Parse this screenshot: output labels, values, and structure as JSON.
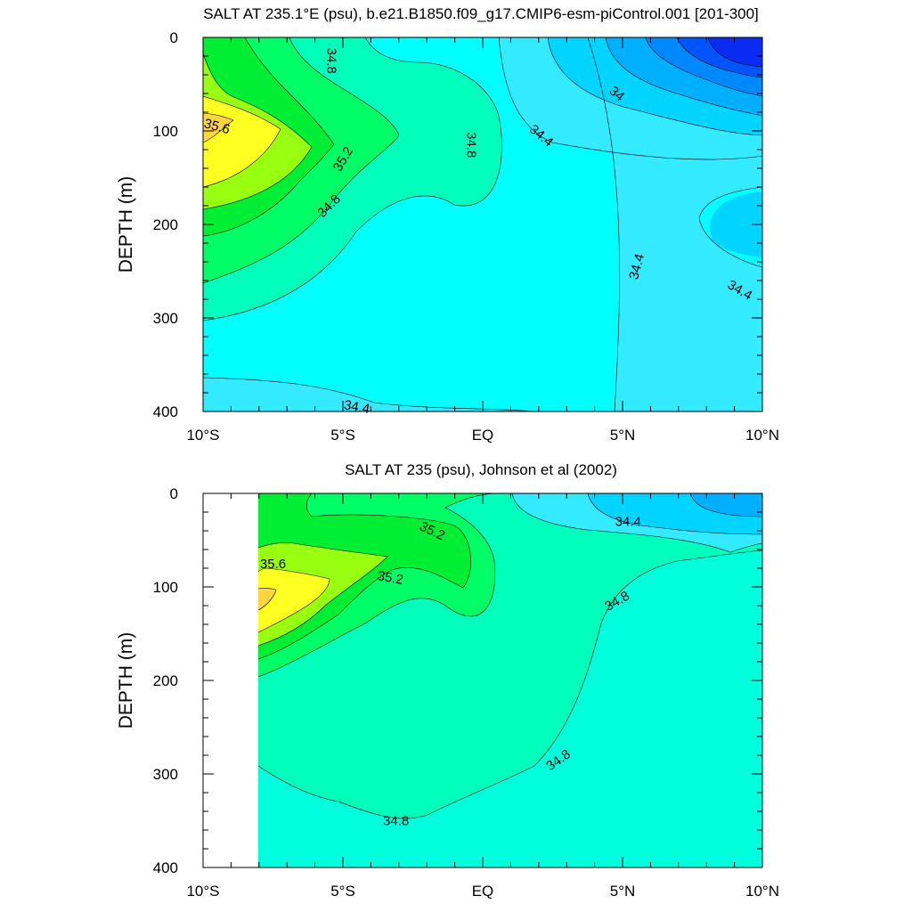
{
  "chart_data": [
    {
      "type": "contour",
      "title": "SALT AT 235.1°E (psu), b.e21.B1850.f09_g17.CMIP6-esm-piControl.001 [201-300]",
      "xlabel": "",
      "ylabel": "DEPTH (m)",
      "xlim": [
        -10,
        10
      ],
      "ylim": [
        400,
        0
      ],
      "y_inverted": true,
      "x_ticks": [
        {
          "value": -10,
          "label": "10°S"
        },
        {
          "value": -5,
          "label": "5°S"
        },
        {
          "value": 0,
          "label": "EQ"
        },
        {
          "value": 5,
          "label": "5°N"
        },
        {
          "value": 10,
          "label": "10°N"
        }
      ],
      "y_ticks": [
        {
          "value": 0,
          "label": "0"
        },
        {
          "value": 100,
          "label": "100"
        },
        {
          "value": 200,
          "label": "200"
        },
        {
          "value": 300,
          "label": "300"
        },
        {
          "value": 400,
          "label": "400"
        }
      ],
      "contour_levels": [
        33.6,
        33.8,
        34.0,
        34.2,
        34.4,
        34.6,
        34.8,
        35.0,
        35.2,
        35.4,
        35.6,
        35.8
      ],
      "contour_labels": [
        {
          "text": "34.8",
          "x": -5.4,
          "y": 25,
          "angle": 90
        },
        {
          "text": "34.8",
          "x": -0.4,
          "y": 115,
          "angle": 90
        },
        {
          "text": "34",
          "x": 4.8,
          "y": 60,
          "angle": 40
        },
        {
          "text": "34.4",
          "x": 2.1,
          "y": 105,
          "angle": 40
        },
        {
          "text": "35.6",
          "x": -9.5,
          "y": 95,
          "angle": 15
        },
        {
          "text": "35.2",
          "x": -5.0,
          "y": 130,
          "angle": -60
        },
        {
          "text": "34.8",
          "x": -5.5,
          "y": 180,
          "angle": -45
        },
        {
          "text": "34.4",
          "x": 5.5,
          "y": 245,
          "angle": -75
        },
        {
          "text": "34.4",
          "x": 9.2,
          "y": 270,
          "angle": 30
        },
        {
          "text": "34.4",
          "x": -4.5,
          "y": 395,
          "angle": 10
        }
      ]
    },
    {
      "type": "contour",
      "title": "SALT AT 235 (psu), Johnson et al (2002)",
      "xlabel": "",
      "ylabel": "DEPTH (m)",
      "xlim": [
        -10,
        10
      ],
      "ylim": [
        400,
        0
      ],
      "y_inverted": true,
      "x_ticks": [
        {
          "value": -10,
          "label": "10°S"
        },
        {
          "value": -5,
          "label": "5°S"
        },
        {
          "value": 0,
          "label": "EQ"
        },
        {
          "value": 5,
          "label": "5°N"
        },
        {
          "value": 10,
          "label": "10°N"
        }
      ],
      "y_ticks": [
        {
          "value": 0,
          "label": "0"
        },
        {
          "value": 100,
          "label": "100"
        },
        {
          "value": 200,
          "label": "200"
        },
        {
          "value": 300,
          "label": "300"
        },
        {
          "value": 400,
          "label": "400"
        }
      ],
      "data_x_range": [
        -8,
        10
      ],
      "contour_levels": [
        34.0,
        34.2,
        34.4,
        34.6,
        34.8,
        35.0,
        35.2,
        35.4,
        35.6,
        35.8
      ],
      "contour_labels": [
        {
          "text": "35.2",
          "x": -1.8,
          "y": 40,
          "angle": 25
        },
        {
          "text": "35.6",
          "x": -7.5,
          "y": 75,
          "angle": 0
        },
        {
          "text": "35.2",
          "x": -3.3,
          "y": 90,
          "angle": 10
        },
        {
          "text": "34.4",
          "x": 5.2,
          "y": 30,
          "angle": 0
        },
        {
          "text": "34.8",
          "x": 4.8,
          "y": 115,
          "angle": -30
        },
        {
          "text": "34.8",
          "x": 2.7,
          "y": 285,
          "angle": -35
        },
        {
          "text": "34.8",
          "x": -3.1,
          "y": 350,
          "angle": 0
        }
      ]
    }
  ],
  "colors": {
    "axis": "#000000",
    "fill_33_6": "#0a2cf2",
    "fill_33_8": "#0055ff",
    "fill_34_0": "#0088ff",
    "fill_34_2": "#00b0ff",
    "fill_34_4": "#00d4ff",
    "fill_34_6": "#33eaff",
    "fill_34_8": "#00ffff",
    "fill_35_0": "#00ffbb",
    "fill_35_2": "#00ff66",
    "fill_35_4": "#00ee33",
    "fill_35_6": "#99ff11",
    "fill_35_8": "#ffff22",
    "fill_36_0": "#ffd540"
  }
}
